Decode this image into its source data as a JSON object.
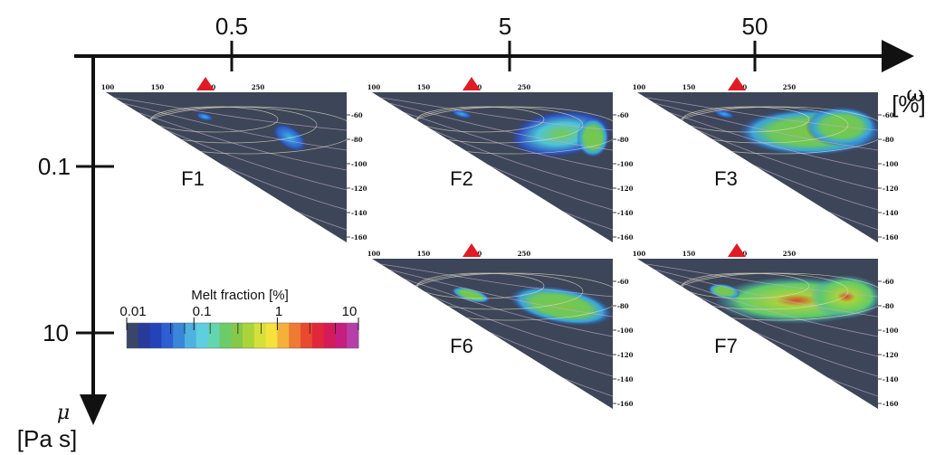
{
  "top_axis": {
    "ticks": [
      "0.5",
      "5",
      "50"
    ],
    "symbol": "ω",
    "unit": "[%]"
  },
  "left_axis": {
    "ticks": [
      "0.1",
      "10"
    ],
    "symbol": "μ",
    "unit": "[Pa s]"
  },
  "panel_axis": {
    "x_ticks": [
      "100",
      "150",
      "200",
      "250"
    ],
    "y_ticks": [
      "-60",
      "-80",
      "-100",
      "-120",
      "-140",
      "-160"
    ]
  },
  "panels": [
    {
      "id": "F1"
    },
    {
      "id": "F2"
    },
    {
      "id": "F3"
    },
    {
      "id": "F6"
    },
    {
      "id": "F7"
    }
  ],
  "colorbar": {
    "title": "Melt fraction [%]",
    "ticks": [
      "0.01",
      "0.1",
      "1",
      "10"
    ],
    "colors": [
      "#3a4668",
      "#283a9a",
      "#2443b8",
      "#2d5fd0",
      "#3a86d8",
      "#4eb1e0",
      "#5fcfe0",
      "#62d6b0",
      "#6ccc6a",
      "#86c84a",
      "#a9d43a",
      "#d6e03a",
      "#f5e23a",
      "#f4b13a",
      "#ee7a33",
      "#e84a30",
      "#e0283a",
      "#d41c5a",
      "#c41e7e",
      "#b63ea8"
    ]
  },
  "marker_color": "#e01b24"
}
